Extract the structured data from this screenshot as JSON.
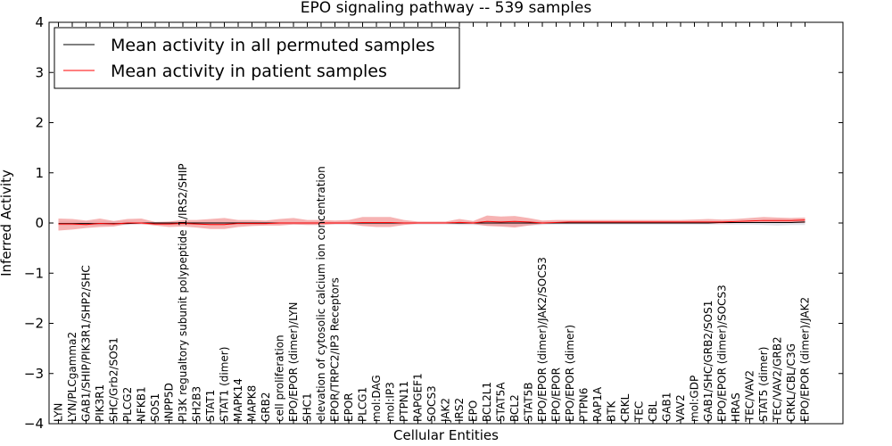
{
  "chart_data": {
    "type": "line",
    "title": "EPO signaling pathway -- 539 samples",
    "xlabel": "Cellular Entities",
    "ylabel": "Inferred Activity",
    "ylim": [
      -4,
      4
    ],
    "yticks": [
      4,
      3,
      2,
      1,
      0,
      -1,
      -2,
      -3,
      -4
    ],
    "ytick_labels": [
      "4",
      "3",
      "2",
      "1",
      "0",
      "−1",
      "−2",
      "−3",
      "−4"
    ],
    "grid": false,
    "legend_position": "upper-left",
    "categories": [
      "LYN",
      "LYN/PLCgamma2",
      "GAB1/SHIP/PIK3R1/SHP2/SHC",
      "PIK3R1",
      "SHC/Grb2/SOS1",
      "PLCG2",
      "NFKB1",
      "SOS1",
      "INPP5D",
      "PI3K regualtory subunit polypeptide 1/IRS2/SHIP",
      "SH2B3",
      "STAT1",
      "STAT1 (dimer)",
      "MAPK14",
      "MAPK8",
      "GRB2",
      "cell proliferation",
      "EPO/EPOR (dimer)/LYN",
      "SHC1",
      "elevation of cytosolic calcium ion concentration",
      "EPOR/TRPC2/IP3 Receptors",
      "EPOR",
      "PLCG1",
      "mol:DAG",
      "mol:IP3",
      "PTPN11",
      "RAPGEF1",
      "SOCS3",
      "JAK2",
      "IRS2",
      "EPO",
      "BCL2L1",
      "STAT5A",
      "BCL2",
      "STAT5B",
      "EPO/EPOR (dimer)/JAK2/SOCS3",
      "EPO/EPOR",
      "EPO/EPOR (dimer)",
      "PTPN6",
      "RAP1A",
      "BTK",
      "CRKL",
      "TEC",
      "CBL",
      "GAB1",
      "VAV2",
      "mol:GDP",
      "GAB1/SHC/GRB2/SOS1",
      "EPO/EPOR (dimer)/SOCS3",
      "HRAS",
      "TEC/VAV2",
      "STAT5 (dimer)",
      "TEC/VAV2/GRB2",
      "CRKL/CBL/C3G",
      "EPO/EPOR (dimer)/JAK2"
    ],
    "series": [
      {
        "name": "Mean activity in all permuted samples",
        "color": "#000000",
        "values": [
          -0.01,
          -0.01,
          -0.01,
          -0.01,
          -0.01,
          -0.01,
          0,
          0,
          0,
          0,
          0,
          0,
          0,
          0,
          0,
          0,
          0,
          0,
          0,
          0,
          0,
          0,
          0,
          0,
          0,
          0,
          0,
          0,
          0,
          0,
          0,
          0,
          0,
          0,
          0,
          0,
          0,
          0,
          0,
          0,
          0,
          0,
          0,
          0,
          0,
          0,
          0,
          0,
          0.01,
          0.01,
          0.01,
          0.01,
          0.01,
          0.01,
          0.02
        ],
        "band_lower": [
          -0.05,
          -0.05,
          -0.05,
          -0.05,
          -0.05,
          -0.04,
          -0.03,
          -0.03,
          -0.03,
          -0.03,
          -0.03,
          -0.03,
          -0.03,
          -0.03,
          -0.03,
          -0.03,
          -0.03,
          -0.03,
          -0.03,
          -0.03,
          -0.03,
          -0.03,
          -0.03,
          -0.03,
          -0.03,
          -0.03,
          -0.03,
          -0.03,
          -0.03,
          -0.04,
          -0.04,
          -0.05,
          -0.06,
          -0.07,
          -0.05,
          -0.04,
          -0.03,
          -0.03,
          -0.03,
          -0.03,
          -0.03,
          -0.03,
          -0.03,
          -0.03,
          -0.03,
          -0.03,
          -0.03,
          -0.03,
          -0.03,
          -0.03,
          -0.03,
          -0.04,
          -0.05,
          -0.04,
          -0.04
        ],
        "band_upper": [
          0.03,
          0.03,
          0.03,
          0.03,
          0.03,
          0.03,
          0.02,
          0.02,
          0.02,
          0.02,
          0.02,
          0.02,
          0.02,
          0.02,
          0.02,
          0.02,
          0.02,
          0.02,
          0.02,
          0.02,
          0.02,
          0.02,
          0.02,
          0.02,
          0.02,
          0.02,
          0.02,
          0.02,
          0.02,
          0.03,
          0.03,
          0.04,
          0.05,
          0.05,
          0.04,
          0.03,
          0.03,
          0.03,
          0.03,
          0.03,
          0.03,
          0.03,
          0.03,
          0.03,
          0.03,
          0.03,
          0.03,
          0.03,
          0.04,
          0.04,
          0.04,
          0.05,
          0.06,
          0.06,
          0.07
        ]
      },
      {
        "name": "Mean activity in patient samples",
        "color": "#ff0000",
        "values": [
          -0.02,
          -0.02,
          -0.03,
          -0.01,
          -0.02,
          0,
          0,
          -0.02,
          -0.02,
          -0.01,
          -0.02,
          -0.03,
          -0.03,
          -0.01,
          -0.01,
          -0.01,
          0,
          0,
          0,
          0,
          0,
          0,
          0.01,
          0.01,
          0.01,
          0,
          0,
          0,
          0,
          0.01,
          0,
          0.03,
          0.02,
          0.03,
          0.02,
          0,
          0.01,
          0.02,
          0.02,
          0.02,
          0.02,
          0.02,
          0.02,
          0.02,
          0.02,
          0.02,
          0.02,
          0.02,
          0.02,
          0.03,
          0.04,
          0.05,
          0.05,
          0.05,
          0.06
        ],
        "band_lower": [
          -0.15,
          -0.13,
          -0.1,
          -0.08,
          -0.07,
          -0.02,
          -0.02,
          -0.05,
          -0.08,
          -0.07,
          -0.09,
          -0.12,
          -0.12,
          -0.08,
          -0.06,
          -0.05,
          -0.05,
          -0.03,
          -0.04,
          -0.04,
          -0.02,
          -0.02,
          -0.06,
          -0.08,
          -0.08,
          -0.04,
          -0.01,
          -0.01,
          -0.01,
          -0.02,
          -0.02,
          -0.06,
          -0.07,
          -0.09,
          -0.05,
          -0.02,
          -0.01,
          -0.01,
          -0.01,
          -0.01,
          -0.01,
          -0.01,
          -0.01,
          -0.01,
          -0.01,
          -0.01,
          -0.01,
          -0.01,
          -0.01,
          0,
          0,
          0,
          0,
          0,
          0
        ],
        "band_upper": [
          0.09,
          0.08,
          0.05,
          0.09,
          0.04,
          0.08,
          0.09,
          0.02,
          0.03,
          0.06,
          0.06,
          0.08,
          0.1,
          0.06,
          0.06,
          0.05,
          0.08,
          0.1,
          0.06,
          0.06,
          0.05,
          0.06,
          0.12,
          0.12,
          0.12,
          0.06,
          0.03,
          0.03,
          0.03,
          0.08,
          0.04,
          0.15,
          0.13,
          0.14,
          0.1,
          0.05,
          0.06,
          0.06,
          0.06,
          0.06,
          0.06,
          0.06,
          0.06,
          0.06,
          0.06,
          0.06,
          0.07,
          0.08,
          0.07,
          0.08,
          0.1,
          0.12,
          0.11,
          0.1,
          0.11
        ]
      }
    ],
    "band_colors": {
      "permuted": "#d9d9e2",
      "patient": "#f08080"
    }
  }
}
